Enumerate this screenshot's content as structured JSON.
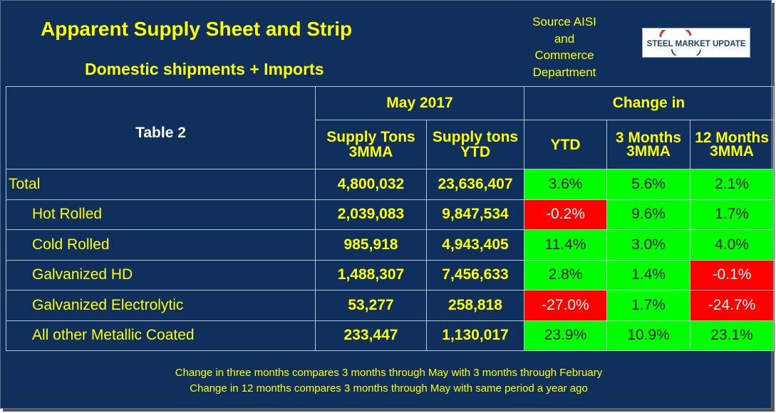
{
  "title": "Apparent Supply Sheet and Strip",
  "subtitle": "Domestic shipments + Imports",
  "source": [
    "Source AISI",
    "and",
    "Commerce",
    "Department"
  ],
  "logo_text": "STEEL MARKET UPDATE",
  "colors": {
    "background": "#0f2f5c",
    "text": "#ffff00",
    "positive": "#00ff00",
    "negative": "#ff0000"
  },
  "table": {
    "label": "Table 2",
    "period": "May 2017",
    "change_label": "Change in",
    "columns": {
      "supply_3mma": [
        "Supply Tons",
        "3MMA"
      ],
      "supply_ytd": [
        "Supply tons",
        "YTD"
      ],
      "ytd": "YTD",
      "m3": [
        "3 Months",
        "3MMA"
      ],
      "m12": [
        "12 Months",
        "3MMA"
      ]
    },
    "rows": [
      {
        "label": "Total",
        "tons_3mma": "4,800,032",
        "tons_ytd": "23,636,407",
        "ytd": "3.6%",
        "m3": "5.6%",
        "m12": "2.1%"
      },
      {
        "label": "Hot Rolled",
        "tons_3mma": "2,039,083",
        "tons_ytd": "9,847,534",
        "ytd": "-0.2%",
        "m3": "9.6%",
        "m12": "1.7%"
      },
      {
        "label": "Cold Rolled",
        "tons_3mma": "985,918",
        "tons_ytd": "4,943,405",
        "ytd": "11.4%",
        "m3": "3.0%",
        "m12": "4.0%"
      },
      {
        "label": "Galvanized HD",
        "tons_3mma": "1,488,307",
        "tons_ytd": "7,456,633",
        "ytd": "2.8%",
        "m3": "1.4%",
        "m12": "-0.1%"
      },
      {
        "label": "Galvanized Electrolytic",
        "tons_3mma": "53,277",
        "tons_ytd": "258,818",
        "ytd": "-27.0%",
        "m3": "1.7%",
        "m12": "-24.7%"
      },
      {
        "label": "All other Metallic Coated",
        "tons_3mma": "233,447",
        "tons_ytd": "1,130,017",
        "ytd": "23.9%",
        "m3": "10.9%",
        "m12": "23.1%"
      }
    ]
  },
  "notes": [
    "Change in three months compares 3 months through May with 3 months through February",
    "Change in 12 months compares 3 months through May with same period a year ago"
  ]
}
